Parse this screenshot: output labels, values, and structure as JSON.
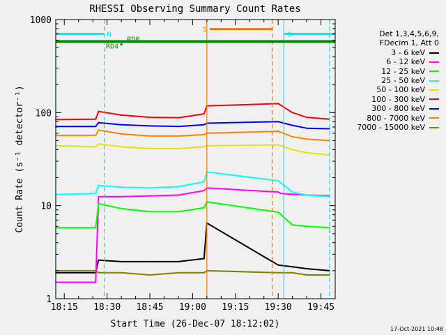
{
  "colors": {
    "background": "#f0f0f0",
    "frame": "#000000",
    "n_marker": "#00e5ee",
    "s_marker": "#e87d10",
    "rd_marker": "#008b00"
  },
  "chart_data": {
    "type": "line",
    "title": "RHESSI Observing Summary Count Rates",
    "xlabel": "Start Time (26-Dec-07 18:12:02)",
    "ylabel": "Count Rate (s⁻¹ detector⁻¹)",
    "yscale": "log",
    "ylim": [
      1,
      1000
    ],
    "xlim": [
      "18:12",
      "19:50"
    ],
    "x_ticks": [
      "18:15",
      "18:30",
      "18:45",
      "19:00",
      "19:15",
      "19:30",
      "19:45"
    ],
    "y_ticks": [
      "1",
      "10",
      "100",
      "1000"
    ],
    "legend_header": [
      "Det 1,3,4,5,6,9,",
      "FDecim 1, Att 0"
    ],
    "legend_position": "right",
    "series": [
      {
        "name": "3 - 6 keV",
        "color": "#000000",
        "x": [
          "18:12",
          "18:26",
          "18:27",
          "18:35",
          "18:45",
          "18:55",
          "19:04",
          "19:05",
          "19:30",
          "19:35",
          "19:40",
          "19:48"
        ],
        "y": [
          1.9,
          1.9,
          2.6,
          2.5,
          2.5,
          2.5,
          2.7,
          6.5,
          2.3,
          2.2,
          2.1,
          2.0
        ]
      },
      {
        "name": "6 - 12 keV",
        "color": "#ff00ff",
        "x": [
          "18:12",
          "18:26",
          "18:27",
          "18:35",
          "18:45",
          "18:55",
          "19:04",
          "19:05",
          "19:30",
          "19:31",
          "19:40",
          "19:48"
        ],
        "y": [
          1.5,
          1.5,
          12.5,
          12.5,
          12.7,
          13.0,
          14.5,
          15.5,
          14.0,
          13.5,
          13.0,
          12.8
        ]
      },
      {
        "name": "12 - 25 keV",
        "color": "#00ff00",
        "x": [
          "18:12",
          "18:26",
          "18:27",
          "18:35",
          "18:45",
          "18:55",
          "19:04",
          "19:05",
          "19:30",
          "19:35",
          "19:40",
          "19:48"
        ],
        "y": [
          5.8,
          5.8,
          10.5,
          9.3,
          8.6,
          8.6,
          9.5,
          11.0,
          8.5,
          6.2,
          6.0,
          5.8
        ]
      },
      {
        "name": "25 - 50 keV",
        "color": "#00ffff",
        "x": [
          "18:12",
          "18:26",
          "18:27",
          "18:35",
          "18:45",
          "18:55",
          "19:04",
          "19:05",
          "19:30",
          "19:35",
          "19:40",
          "19:48"
        ],
        "y": [
          13.2,
          13.5,
          16.5,
          15.8,
          15.5,
          16.0,
          18.0,
          23.0,
          18.5,
          14.0,
          13.0,
          12.5
        ]
      },
      {
        "name": "50 - 100 keV",
        "color": "#e5e500",
        "x": [
          "18:12",
          "18:26",
          "18:27",
          "18:35",
          "18:45",
          "18:55",
          "19:04",
          "19:05",
          "19:30",
          "19:35",
          "19:40",
          "19:48"
        ],
        "y": [
          44,
          43,
          46,
          43,
          41,
          41,
          43,
          44,
          45,
          40,
          37,
          35
        ]
      },
      {
        "name": "100 - 300 keV",
        "color": "#ff0000",
        "x": [
          "18:12",
          "18:26",
          "18:27",
          "18:35",
          "18:45",
          "18:55",
          "19:04",
          "19:05",
          "19:30",
          "19:35",
          "19:40",
          "19:48"
        ],
        "y": [
          84,
          85,
          103,
          94,
          89,
          88,
          97,
          118,
          125,
          100,
          89,
          85
        ]
      },
      {
        "name": "300 - 800 keV",
        "color": "#0000ff",
        "x": [
          "18:12",
          "18:26",
          "18:27",
          "18:35",
          "18:45",
          "18:55",
          "19:04",
          "19:05",
          "19:30",
          "19:35",
          "19:40",
          "19:48"
        ],
        "y": [
          71,
          71,
          78,
          74,
          72,
          71,
          74,
          77,
          80,
          73,
          68,
          67
        ]
      },
      {
        "name": "800 - 7000 keV",
        "color": "#ff8000",
        "x": [
          "18:12",
          "18:26",
          "18:27",
          "18:35",
          "18:45",
          "18:55",
          "19:04",
          "19:05",
          "19:30",
          "19:35",
          "19:40",
          "19:48"
        ],
        "y": [
          57,
          57,
          65,
          59,
          56,
          56,
          58,
          60,
          63,
          55,
          52,
          50
        ]
      },
      {
        "name": "7000 - 15000 keV",
        "color": "#808000",
        "x": [
          "18:12",
          "18:26",
          "18:27",
          "18:35",
          "18:45",
          "18:55",
          "19:04",
          "19:05",
          "19:30",
          "19:35",
          "19:40",
          "19:48"
        ],
        "y": [
          2.0,
          2.0,
          1.9,
          1.9,
          1.8,
          1.9,
          1.9,
          2.0,
          1.9,
          1.9,
          1.8,
          1.8
        ]
      }
    ],
    "annotations": [
      {
        "label": "N",
        "x_start": "18:12",
        "x_end": "18:29",
        "y": 700,
        "color": "#00e5ee"
      },
      {
        "label": "N",
        "x_start": "19:32",
        "x_end": "19:50",
        "y": 700,
        "color": "#00e5ee"
      },
      {
        "label": "S",
        "x_start": "19:06",
        "x_end": "19:28",
        "y": 790,
        "color": "#e87d10"
      },
      {
        "label": "RD0",
        "x_start": "18:12",
        "x_end": "19:50",
        "y": 580,
        "color": "#008b00"
      },
      {
        "label": "RD4",
        "x": "18:35",
        "y": 540,
        "color": "#008b00"
      }
    ],
    "vlines_solid": [
      "18:12",
      "19:05",
      "19:32"
    ],
    "vlines_dashed": [
      "18:29",
      "19:28",
      "19:48"
    ]
  },
  "timestamp": "17-Oct-2021 10:48"
}
